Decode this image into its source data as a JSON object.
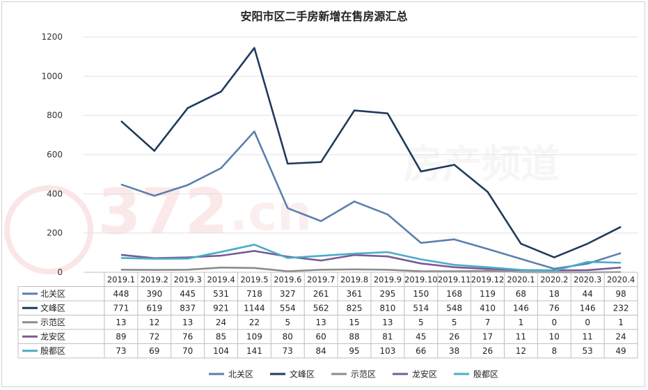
{
  "chart_data": {
    "type": "line",
    "title": "安阳市区二手房新增在售房源汇总",
    "categories": [
      "2019.1",
      "2019.2",
      "2019.3",
      "2019.4",
      "2019.5",
      "2019.6",
      "2019.7",
      "2019.8",
      "2019.9",
      "2019.10",
      "2019.11",
      "2019.12",
      "2020.1",
      "2020.2",
      "2020.3",
      "2020.4"
    ],
    "ylim": [
      0,
      1200
    ],
    "yticks": [
      0,
      200,
      400,
      600,
      800,
      1000,
      1200
    ],
    "grid": true,
    "legend_position": "bottom",
    "series": [
      {
        "name": "北关区",
        "color": "#5b7fae",
        "values": [
          448,
          390,
          445,
          531,
          718,
          327,
          261,
          361,
          295,
          150,
          168,
          119,
          68,
          18,
          44,
          98
        ]
      },
      {
        "name": "文峰区",
        "color": "#1f3a5c",
        "values": [
          771,
          619,
          837,
          921,
          1144,
          554,
          562,
          825,
          810,
          514,
          548,
          410,
          146,
          76,
          146,
          232
        ]
      },
      {
        "name": "示范区",
        "color": "#8c8c8c",
        "values": [
          13,
          12,
          13,
          24,
          22,
          5,
          13,
          15,
          13,
          5,
          5,
          7,
          1,
          0,
          0,
          1
        ]
      },
      {
        "name": "龙安区",
        "color": "#7a5a96",
        "values": [
          89,
          72,
          76,
          85,
          109,
          80,
          60,
          88,
          81,
          45,
          26,
          17,
          11,
          10,
          11,
          24
        ]
      },
      {
        "name": "殷都区",
        "color": "#4bacc6",
        "values": [
          73,
          69,
          70,
          104,
          141,
          73,
          84,
          95,
          103,
          66,
          38,
          26,
          12,
          8,
          53,
          49
        ]
      }
    ]
  }
}
